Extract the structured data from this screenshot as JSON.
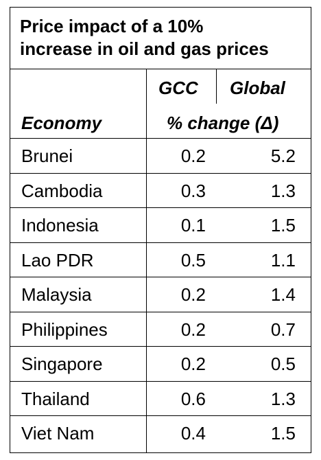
{
  "chart_data": {
    "type": "table",
    "title_lines": [
      "Price impact of a 10%",
      "increase in oil and gas prices"
    ],
    "columns": [
      "GCC",
      "Global"
    ],
    "row_header": "Economy",
    "subheader": "% change (Δ)",
    "rows": [
      {
        "economy": "Brunei",
        "gcc": "0.2",
        "global": "5.2"
      },
      {
        "economy": "Cambodia",
        "gcc": "0.3",
        "global": "1.3"
      },
      {
        "economy": "Indonesia",
        "gcc": "0.1",
        "global": "1.5"
      },
      {
        "economy": "Lao PDR",
        "gcc": "0.5",
        "global": "1.1"
      },
      {
        "economy": "Malaysia",
        "gcc": "0.2",
        "global": "1.4"
      },
      {
        "economy": "Philippines",
        "gcc": "0.2",
        "global": "0.7"
      },
      {
        "economy": "Singapore",
        "gcc": "0.2",
        "global": "0.5"
      },
      {
        "economy": "Thailand",
        "gcc": "0.6",
        "global": "1.3"
      },
      {
        "economy": "Viet Nam",
        "gcc": "0.4",
        "global": "1.5"
      }
    ]
  }
}
